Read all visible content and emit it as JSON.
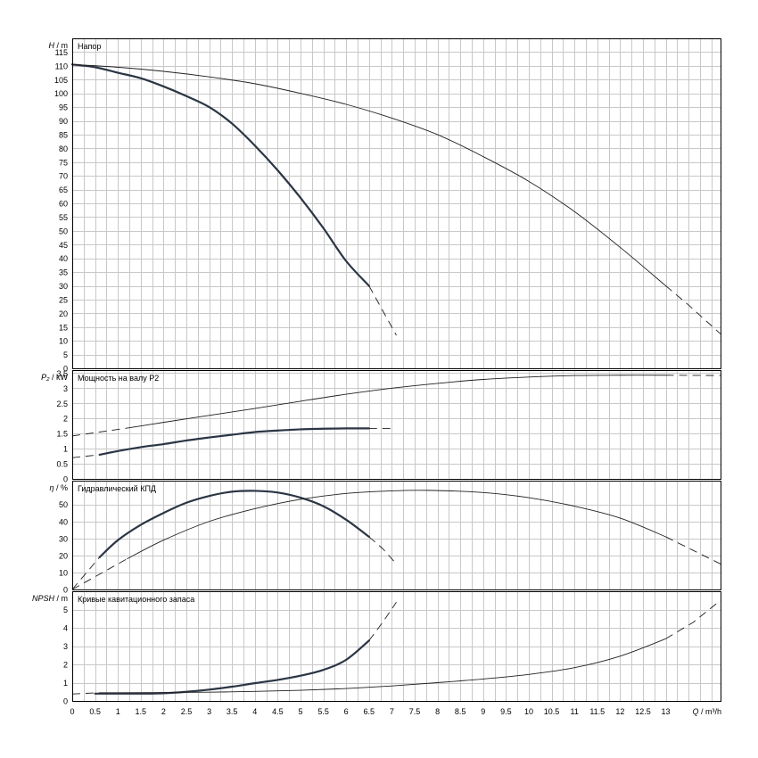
{
  "chart_data": [
    {
      "type": "line",
      "title": "Напор",
      "ylabel_symbol": "H",
      "ylabel_unit": "m",
      "ylim": [
        0,
        120
      ],
      "yticks": [
        0,
        5,
        10,
        15,
        20,
        25,
        30,
        35,
        40,
        45,
        50,
        55,
        60,
        65,
        70,
        75,
        80,
        85,
        90,
        95,
        100,
        105,
        110,
        115
      ],
      "series": [
        {
          "id": "head_pump_a",
          "style": "thick",
          "x": [
            0,
            0.5,
            1,
            1.5,
            2,
            2.5,
            3,
            3.5,
            4,
            4.5,
            5,
            5.5,
            6,
            6.5
          ],
          "y": [
            110.5,
            109.5,
            107.5,
            105.5,
            102.5,
            99,
            95,
            89,
            81,
            72,
            62,
            51,
            39,
            30
          ],
          "ext_x": [
            6.5,
            6.8,
            7.1
          ],
          "ext_y": [
            30,
            21,
            12
          ]
        },
        {
          "id": "head_pump_b",
          "style": "thin",
          "x": [
            0,
            1,
            2,
            3,
            4,
            5,
            6,
            7,
            8,
            9,
            10,
            11,
            12,
            13
          ],
          "y": [
            110.5,
            109.5,
            108,
            106,
            103.5,
            100,
            96,
            91,
            85,
            77,
            68,
            57,
            44,
            30
          ],
          "ext_x": [
            13,
            13.5,
            14.2
          ],
          "ext_y": [
            30,
            23,
            12.5
          ]
        }
      ]
    },
    {
      "type": "line",
      "title": "Мощность на валу P2",
      "ylabel_symbol": "P₂",
      "ylabel_unit": "kW",
      "ylim": [
        0,
        3.6
      ],
      "yticks": [
        0,
        0.5,
        1,
        1.5,
        2,
        2.5,
        3,
        3.5
      ],
      "series": [
        {
          "id": "power_pump_a",
          "style": "thick",
          "ext_x0": [
            0,
            0.6
          ],
          "ext_y0": [
            0.7,
            0.8
          ],
          "x": [
            0.6,
            1,
            1.5,
            2,
            2.5,
            3,
            3.5,
            4,
            4.5,
            5,
            5.5,
            6,
            6.5
          ],
          "y": [
            0.8,
            0.92,
            1.05,
            1.15,
            1.27,
            1.37,
            1.46,
            1.55,
            1.6,
            1.64,
            1.66,
            1.67,
            1.67
          ],
          "ext_x": [
            6.5,
            7
          ],
          "ext_y": [
            1.67,
            1.67
          ]
        },
        {
          "id": "power_pump_b",
          "style": "thin",
          "ext_x0": [
            0,
            1.2
          ],
          "ext_y0": [
            1.42,
            1.68
          ],
          "x": [
            1.2,
            2,
            3,
            4,
            5,
            6,
            7,
            8,
            9,
            10,
            11,
            12,
            13
          ],
          "y": [
            1.68,
            1.87,
            2.1,
            2.33,
            2.57,
            2.8,
            3,
            3.16,
            3.29,
            3.37,
            3.42,
            3.43,
            3.43
          ],
          "ext_x": [
            13,
            14.2
          ],
          "ext_y": [
            3.43,
            3.42
          ]
        }
      ]
    },
    {
      "type": "line",
      "title": "Гидравлический КПД",
      "ylabel_symbol": "η",
      "ylabel_unit": "%",
      "ylim": [
        0,
        64
      ],
      "yticks": [
        0,
        10,
        20,
        30,
        40,
        50
      ],
      "series": [
        {
          "id": "eff_pump_a",
          "style": "thick",
          "ext_x0": [
            0,
            0.6
          ],
          "ext_y0": [
            0,
            19
          ],
          "x": [
            0.6,
            1,
            1.5,
            2,
            2.5,
            3,
            3.5,
            4,
            4.5,
            5,
            5.5,
            6,
            6.5
          ],
          "y": [
            19,
            29,
            38,
            45,
            51,
            55,
            57.5,
            58,
            57,
            54,
            49,
            41,
            31
          ],
          "ext_x": [
            6.5,
            6.8,
            7.1
          ],
          "ext_y": [
            31,
            24,
            15
          ]
        },
        {
          "id": "eff_pump_b",
          "style": "thin",
          "ext_x0": [
            0,
            1.2
          ],
          "ext_y0": [
            0,
            18
          ],
          "x": [
            1.2,
            2,
            3,
            4,
            5,
            6,
            7,
            7.8,
            9,
            10,
            11,
            12,
            13
          ],
          "y": [
            18,
            29,
            40,
            47.5,
            53,
            56.5,
            58,
            58.3,
            57,
            54,
            49,
            42,
            31
          ],
          "ext_x": [
            13,
            13.6,
            14.2
          ],
          "ext_y": [
            31,
            23,
            15
          ]
        }
      ]
    },
    {
      "type": "line",
      "title": "Кривые кавитационного запаса",
      "ylabel_symbol": "NPSH",
      "ylabel_unit": "m",
      "ylim": [
        0,
        6
      ],
      "yticks": [
        0,
        1,
        2,
        3,
        4,
        5
      ],
      "xlabel_symbol": "Q",
      "xlabel_unit": "m³/h",
      "xlim": [
        0,
        14.2
      ],
      "xticks": [
        "0",
        "0.5",
        "1",
        "1.5",
        "2",
        "2.5",
        "3",
        "3.5",
        "4",
        "4.5",
        "5",
        "5.5",
        "6",
        "6.5",
        "7",
        "7.5",
        "8",
        "8.5",
        "9",
        "9.5",
        "10",
        "10.5",
        "11",
        "11.5",
        "12",
        "12.5",
        "13"
      ],
      "series": [
        {
          "id": "npsh_pump_a",
          "style": "thick",
          "x": [
            0.5,
            1,
            1.5,
            2,
            2.5,
            3,
            3.5,
            4,
            4.5,
            5,
            5.5,
            6,
            6.5
          ],
          "y": [
            0.4,
            0.4,
            0.4,
            0.42,
            0.5,
            0.62,
            0.78,
            0.97,
            1.15,
            1.38,
            1.7,
            2.25,
            3.3
          ],
          "ext_x": [
            6.5,
            6.8,
            7.1
          ],
          "ext_y": [
            3.3,
            4.3,
            5.4
          ]
        },
        {
          "id": "npsh_pump_b",
          "style": "thin",
          "ext_x0": [
            0,
            0.6
          ],
          "ext_y0": [
            0.38,
            0.45
          ],
          "x": [
            0.6,
            1,
            2,
            3,
            4,
            5,
            6,
            7,
            8,
            9,
            10,
            11,
            12,
            13
          ],
          "y": [
            0.45,
            0.45,
            0.46,
            0.48,
            0.52,
            0.58,
            0.68,
            0.82,
            1.0,
            1.2,
            1.45,
            1.82,
            2.45,
            3.4
          ],
          "ext_x": [
            13,
            13.6,
            14.2
          ],
          "ext_y": [
            3.4,
            4.3,
            5.5
          ]
        }
      ]
    }
  ]
}
